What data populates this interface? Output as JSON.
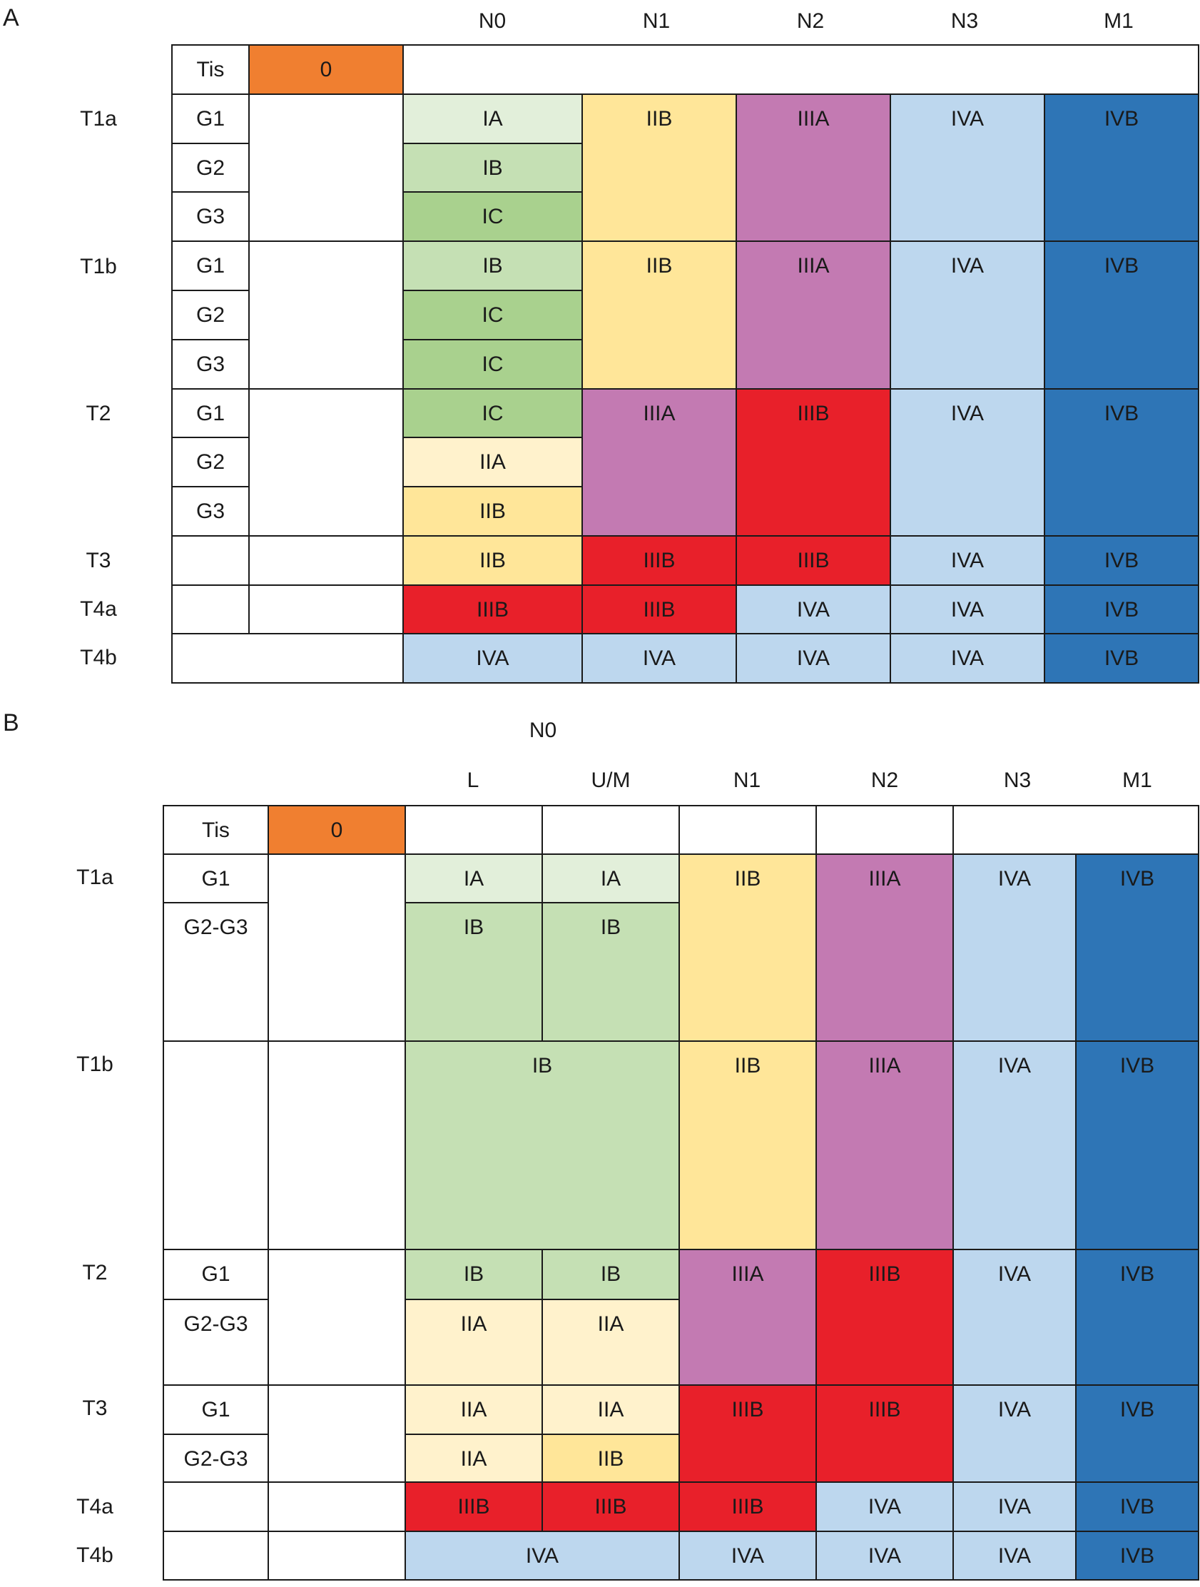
{
  "colors": {
    "stage0": "#f07f30",
    "IA": "#e2efda",
    "IB": "#c5e0b4",
    "IC": "#a9d18e",
    "IIA": "#fff2cc",
    "IIB": "#ffe699",
    "IIIA": "#c37ab2",
    "IIIB": "#e8202a",
    "IVA": "#bdd7ee",
    "IVB": "#2e75b6",
    "none": "#ffffff"
  },
  "panelA": {
    "letter": "A",
    "columns": [
      "N0",
      "N1",
      "N2",
      "N3",
      "M1"
    ],
    "rows": [
      "T1a",
      "T1b",
      "T2",
      "T3",
      "T4a",
      "T4b"
    ],
    "tis": "Tis",
    "zero": "0",
    "grades": [
      "G1",
      "G2",
      "G3"
    ]
  },
  "panelB": {
    "letter": "B",
    "n0": "N0",
    "columns": [
      "L",
      "U/M",
      "N1",
      "N2",
      "N3",
      "M1"
    ],
    "rows": [
      "T1a",
      "T1b",
      "T2",
      "T3",
      "T4a",
      "T4b"
    ],
    "tis": "Tis",
    "zero": "0",
    "grades": [
      "G1",
      "G2-G3"
    ]
  }
}
